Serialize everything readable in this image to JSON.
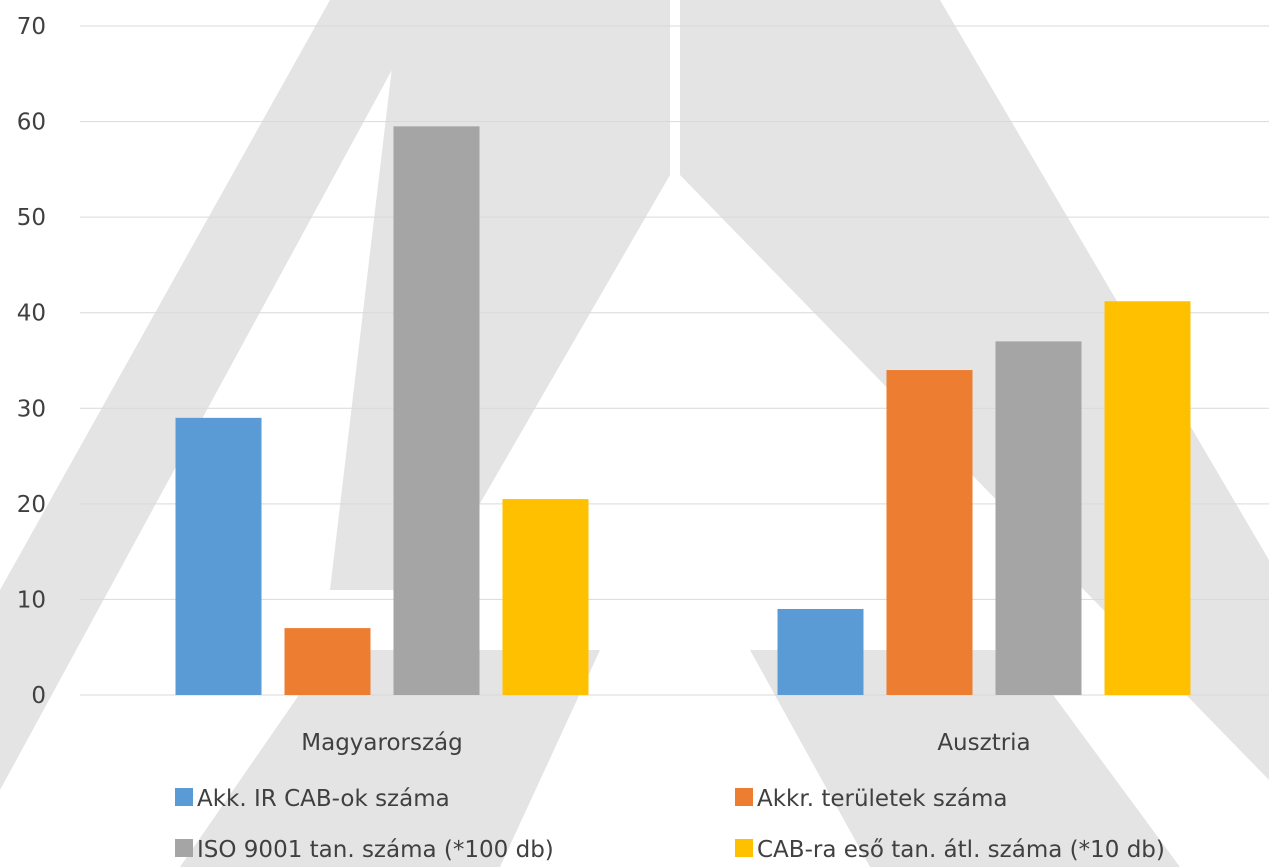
{
  "chart_data": {
    "type": "bar",
    "categories": [
      "Magyarország",
      "Ausztria"
    ],
    "series": [
      {
        "name": "Akk. IR CAB-ok száma",
        "values": [
          29,
          9
        ],
        "color": "#5B9BD5"
      },
      {
        "name": "Akkr. területek száma",
        "values": [
          7,
          34
        ],
        "color": "#ED7D31"
      },
      {
        "name": "ISO 9001 tan. száma (*100 db)",
        "values": [
          59.5,
          37
        ],
        "color": "#A5A5A5"
      },
      {
        "name": "CAB-ra eső tan.  átl. száma (*10 db)",
        "values": [
          20.5,
          41.2
        ],
        "color": "#FFC000"
      }
    ],
    "ylim": [
      0,
      70
    ],
    "yticks": [
      0,
      10,
      20,
      30,
      40,
      50,
      60,
      70
    ],
    "grid": true,
    "legend_position": "bottom",
    "title": "",
    "xlabel": "",
    "ylabel": ""
  },
  "watermark": {
    "icon": "triangle-logo-watermark",
    "color": "#E4E4E4"
  }
}
